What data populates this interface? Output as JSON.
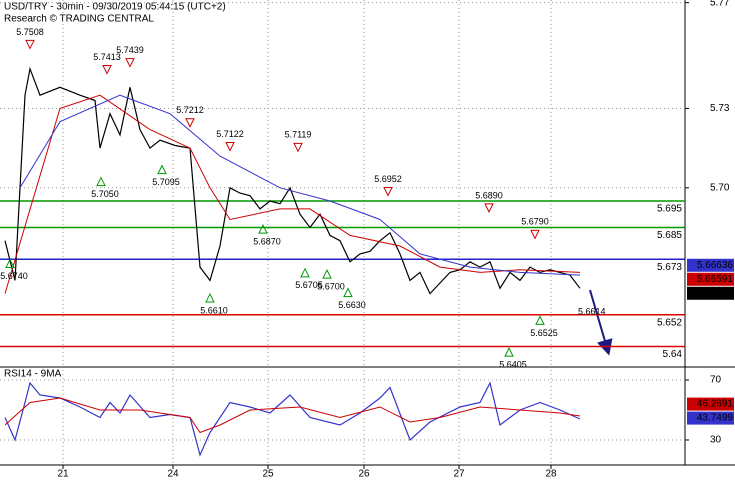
{
  "chart_data": [
    {
      "type": "line",
      "title": "USD/TRY - 30min - 09/30/2019 05:44:15 (UTC+2)",
      "subtitle": "Research © TRADING CENTRAL",
      "xlim": [
        0,
        68.5
      ],
      "xticks": [
        {
          "value": 6.3,
          "label": "21"
        },
        {
          "value": 17.3,
          "label": "24"
        },
        {
          "value": 26.8,
          "label": "25"
        },
        {
          "value": 36.4,
          "label": "26"
        },
        {
          "value": 45.9,
          "label": "27"
        },
        {
          "value": 55.1,
          "label": "28"
        }
      ],
      "ylim": [
        5.633,
        5.771
      ],
      "yticks": [
        {
          "value": 5.7,
          "label": "5.70"
        },
        5.73,
        5.77
      ],
      "grid": true,
      "series": [
        {
          "color": "#000000",
          "x": [
            0.5,
            1.5,
            2.5,
            3,
            4,
            6,
            8,
            9.5,
            10,
            11,
            12,
            13,
            14,
            15,
            16,
            17.5,
            19,
            20,
            21,
            22,
            23,
            24,
            25,
            26,
            27,
            28,
            29,
            30,
            31,
            32,
            33,
            34,
            35,
            36,
            37,
            38,
            39,
            40,
            41,
            42,
            43,
            44,
            45,
            46,
            47,
            48,
            49,
            50,
            51,
            52,
            53,
            54,
            55,
            56,
            57,
            58
          ],
          "values": [
            5.68,
            5.665,
            5.735,
            5.745,
            5.735,
            5.738,
            5.735,
            5.733,
            5.715,
            5.728,
            5.72,
            5.738,
            5.722,
            5.715,
            5.718,
            5.716,
            5.715,
            5.67,
            5.665,
            5.678,
            5.7,
            5.698,
            5.697,
            5.692,
            5.695,
            5.694,
            5.7,
            5.69,
            5.685,
            5.69,
            5.682,
            5.68,
            5.672,
            5.675,
            5.676,
            5.68,
            5.683,
            5.675,
            5.665,
            5.668,
            5.66,
            5.664,
            5.668,
            5.669,
            5.672,
            5.67,
            5.672,
            5.662,
            5.668,
            5.665,
            5.67,
            5.668,
            5.669,
            5.668,
            5.667,
            5.662
          ]
        },
        {
          "color": "#cc0000",
          "x": [
            0.5,
            6,
            10,
            15,
            19,
            21,
            23,
            28,
            31,
            35,
            40,
            44,
            48,
            52,
            58
          ],
          "values": [
            5.66,
            5.73,
            5.735,
            5.722,
            5.715,
            5.7,
            5.688,
            5.692,
            5.692,
            5.682,
            5.678,
            5.67,
            5.668,
            5.669,
            5.668
          ]
        },
        {
          "color": "#3333cc",
          "x": [
            2,
            6,
            12,
            17,
            22,
            28,
            33,
            38,
            42,
            47,
            52,
            58
          ],
          "values": [
            5.7,
            5.725,
            5.735,
            5.728,
            5.712,
            5.7,
            5.695,
            5.688,
            5.675,
            5.67,
            5.668,
            5.667
          ]
        }
      ],
      "levels": [
        {
          "value": 5.695,
          "color": "#009900"
        },
        {
          "value": 5.685,
          "color": "#009900"
        },
        {
          "value": 5.673,
          "color": "#2222cc"
        },
        {
          "value": 5.652,
          "color": "#dd0000"
        },
        {
          "value": 5.64,
          "color": "#dd0000"
        }
      ],
      "peaks": [
        {
          "x": 3.0,
          "value": 5.7508,
          "label": "5.7508"
        },
        {
          "x": 10.7,
          "value": 5.7413,
          "label": "5.7413"
        },
        {
          "x": 13.0,
          "value": 5.7439,
          "label": "5.7439"
        },
        {
          "x": 19.0,
          "value": 5.7212,
          "label": "5.7212"
        },
        {
          "x": 23.0,
          "value": 5.7122,
          "label": "5.7122"
        },
        {
          "x": 29.8,
          "value": 5.7119,
          "label": "5.7119"
        },
        {
          "x": 38.8,
          "value": 5.6952,
          "label": "5.6952"
        },
        {
          "x": 48.9,
          "value": 5.689,
          "label": "5.6890"
        },
        {
          "x": 53.5,
          "value": 5.679,
          "label": "5.6790"
        }
      ],
      "troughs": [
        {
          "x": 1.0,
          "value": 5.674,
          "label": "5.6740"
        },
        {
          "x": 10.1,
          "value": 5.705,
          "label": "5.7050"
        },
        {
          "x": 16.2,
          "value": 5.7095,
          "label": "5.7095"
        },
        {
          "x": 21.0,
          "value": 5.661,
          "label": "5.6610"
        },
        {
          "x": 26.3,
          "value": 5.687,
          "label": "5.6870"
        },
        {
          "x": 30.5,
          "value": 5.6705,
          "label": "5.6705"
        },
        {
          "x": 32.7,
          "value": 5.67,
          "label": "5.6700"
        },
        {
          "x": 34.8,
          "value": 5.663,
          "label": "5.6630"
        },
        {
          "x": 50.9,
          "value": 5.6405,
          "label": "5.6405"
        },
        {
          "x": 54.0,
          "value": 5.6525,
          "label": "5.6525"
        }
      ],
      "targets": [
        {
          "x": 57.8,
          "value": 5.6614,
          "label": "5.6614"
        }
      ],
      "last_values": [
        {
          "value": 5.66636,
          "color": "#3333cc"
        },
        {
          "value": 5.66591,
          "color": "#cc0000"
        },
        {
          "value": 5.662,
          "color": "#000000"
        }
      ]
    },
    {
      "type": "line",
      "title": "RSI14 - 9MA",
      "xlim": [
        0,
        68.5
      ],
      "ylim": [
        13.3,
        76.7
      ],
      "yticks": [
        30,
        70
      ],
      "grid": true,
      "series": [
        {
          "color": "#3333cc",
          "x": [
            0.5,
            1.5,
            2.5,
            3,
            4,
            6,
            8,
            10,
            11,
            12,
            13,
            15,
            17,
            19,
            20,
            21,
            23,
            25,
            27,
            29,
            31,
            34,
            36,
            38,
            39,
            41,
            43,
            46,
            48,
            49,
            50,
            52,
            54,
            56,
            58
          ],
          "values": [
            45,
            30,
            55,
            68,
            60,
            58,
            52,
            45,
            55,
            48,
            60,
            45,
            47,
            45,
            20,
            35,
            55,
            52,
            48,
            60,
            45,
            40,
            48,
            58,
            65,
            30,
            42,
            52,
            55,
            68,
            40,
            50,
            55,
            50,
            44
          ]
        },
        {
          "color": "#cc0000",
          "x": [
            0.5,
            3,
            6,
            10,
            14,
            19,
            20,
            22,
            25,
            30,
            34,
            38,
            41,
            44,
            48,
            52,
            56,
            58
          ],
          "values": [
            40,
            55,
            58,
            50,
            50,
            45,
            35,
            40,
            50,
            52,
            45,
            52,
            42,
            45,
            52,
            50,
            48,
            46
          ]
        }
      ],
      "last_values": [
        {
          "value": 46.2691,
          "color": "#cc0000"
        },
        {
          "value": 43.7499,
          "color": "#3333cc"
        }
      ]
    }
  ]
}
